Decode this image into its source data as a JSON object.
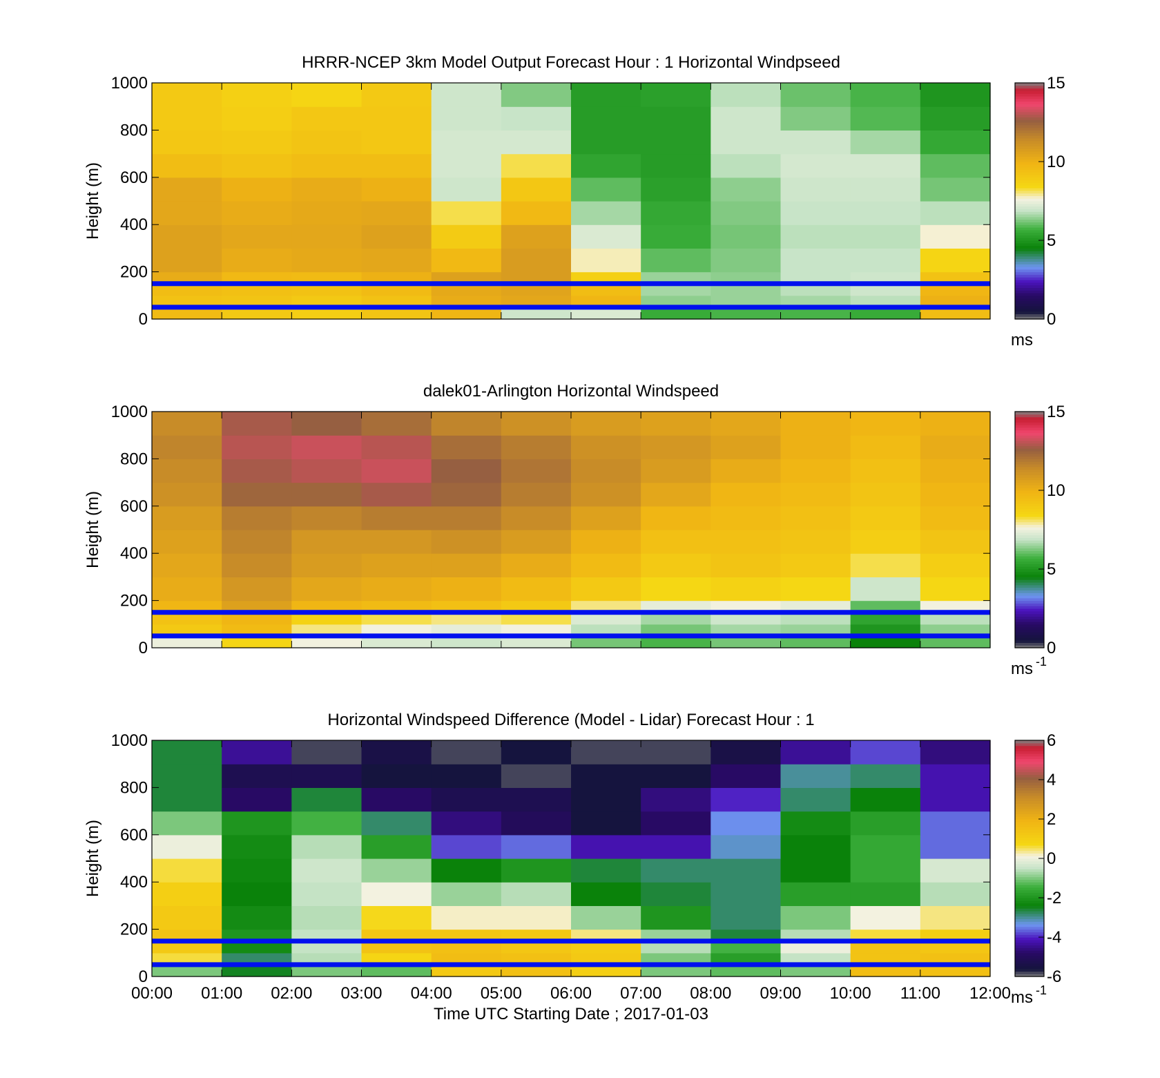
{
  "chart_data": [
    {
      "type": "heatmap",
      "title": "HRRR-NCEP 3km Model Output   Forecast Hour : 1 Horizontal Windpseed",
      "xlabel": "",
      "ylabel": "Height (m)",
      "xlim": [
        0,
        12
      ],
      "ylim": [
        0,
        1000
      ],
      "yticks": [
        "0",
        "200",
        "400",
        "600",
        "800",
        "1000"
      ],
      "colorbar": {
        "range": [
          0,
          15
        ],
        "ticks": [
          "0",
          "5",
          "10",
          "15"
        ],
        "unit": "ms",
        "unit_sup": ""
      },
      "reference_heights_m": [
        50,
        150
      ],
      "heights_m": [
        50,
        100,
        150,
        200,
        300,
        400,
        500,
        600,
        700,
        800,
        900,
        1000
      ],
      "times_h": [
        0,
        1,
        2,
        3,
        4,
        5,
        6,
        7,
        8,
        9,
        10,
        11
      ],
      "values": [
        [
          9.6,
          9.0,
          8.8,
          9.2,
          9.8,
          7.0,
          7.2,
          5.6,
          5.8,
          5.8,
          5.6,
          9.5
        ],
        [
          9.3,
          9.2,
          9.0,
          9.3,
          10.2,
          10.4,
          9.8,
          6.4,
          6.5,
          6.6,
          6.8,
          10.0
        ],
        [
          9.5,
          9.4,
          9.3,
          9.6,
          10.3,
          10.5,
          9.5,
          6.6,
          6.5,
          6.8,
          7.0,
          9.8
        ],
        [
          10.2,
          9.7,
          9.6,
          10.0,
          10.6,
          10.8,
          8.7,
          6.5,
          6.4,
          6.9,
          7.0,
          9.3
        ],
        [
          10.6,
          10.2,
          10.3,
          10.4,
          9.7,
          10.8,
          7.8,
          6.0,
          6.3,
          6.9,
          6.9,
          8.5
        ],
        [
          10.6,
          10.4,
          10.4,
          10.6,
          8.9,
          10.6,
          7.2,
          5.6,
          6.2,
          6.8,
          6.8,
          7.7
        ],
        [
          10.4,
          10.2,
          10.3,
          10.4,
          8.2,
          9.7,
          6.6,
          5.5,
          6.3,
          6.9,
          6.9,
          6.8
        ],
        [
          10.4,
          10.0,
          10.2,
          10.0,
          7.0,
          9.1,
          6.0,
          5.3,
          6.4,
          7.0,
          7.0,
          6.2
        ],
        [
          9.5,
          9.3,
          9.5,
          9.5,
          7.1,
          8.2,
          5.4,
          5.2,
          6.8,
          7.1,
          7.1,
          6.0
        ],
        [
          9.1,
          9.0,
          9.2,
          9.1,
          7.1,
          7.1,
          5.2,
          5.2,
          7.0,
          7.0,
          6.6,
          5.5
        ],
        [
          9.0,
          8.8,
          9.1,
          9.1,
          7.0,
          6.9,
          5.2,
          5.2,
          7.0,
          6.3,
          5.9,
          5.2
        ],
        [
          9.0,
          8.7,
          8.5,
          9.0,
          7.0,
          6.3,
          5.2,
          5.3,
          6.8,
          6.1,
          5.8,
          5.0
        ]
      ]
    },
    {
      "type": "heatmap",
      "title": "dalek01-Arlington  Horizontal Windspeed",
      "xlabel": "",
      "ylabel": "Height (m)",
      "xlim": [
        0,
        12
      ],
      "ylim": [
        0,
        1000
      ],
      "yticks": [
        "0",
        "200",
        "400",
        "600",
        "800",
        "1000"
      ],
      "colorbar": {
        "range": [
          0,
          15
        ],
        "ticks": [
          "0",
          "5",
          "10",
          "15"
        ],
        "unit": "ms",
        "unit_sup": "-1"
      },
      "reference_heights_m": [
        50,
        150
      ],
      "heights_m": [
        50,
        100,
        150,
        200,
        300,
        400,
        500,
        600,
        700,
        800,
        900,
        1000
      ],
      "times_h": [
        0,
        1,
        2,
        3,
        4,
        5,
        6,
        7,
        8,
        9,
        10,
        11
      ],
      "values": [
        [
          7.5,
          8.5,
          7.6,
          7.2,
          7.0,
          7.2,
          6.2,
          5.8,
          6.2,
          6.0,
          4.5,
          6.0
        ],
        [
          9.0,
          9.6,
          8.0,
          7.6,
          7.4,
          7.6,
          6.8,
          6.2,
          6.6,
          6.5,
          5.0,
          6.4
        ],
        [
          9.3,
          9.8,
          8.6,
          8.2,
          8.0,
          8.2,
          7.2,
          6.6,
          7.0,
          6.8,
          5.4,
          6.8
        ],
        [
          9.8,
          10.6,
          9.8,
          9.6,
          9.4,
          9.0,
          8.0,
          7.4,
          7.6,
          7.4,
          6.0,
          7.6
        ],
        [
          10.2,
          11.0,
          10.4,
          10.2,
          10.0,
          9.6,
          9.0,
          8.4,
          8.6,
          8.4,
          7.0,
          8.4
        ],
        [
          10.4,
          11.4,
          10.8,
          10.6,
          10.6,
          10.2,
          9.6,
          9.0,
          9.2,
          9.0,
          8.2,
          8.8
        ],
        [
          10.6,
          11.6,
          11.0,
          11.0,
          11.2,
          10.8,
          10.0,
          9.4,
          9.4,
          9.2,
          8.8,
          9.2
        ],
        [
          10.8,
          11.8,
          11.6,
          11.8,
          11.8,
          11.4,
          10.6,
          9.8,
          9.6,
          9.4,
          9.0,
          9.6
        ],
        [
          11.2,
          12.4,
          12.4,
          12.8,
          12.4,
          11.8,
          11.2,
          10.4,
          9.8,
          9.6,
          9.2,
          9.8
        ],
        [
          11.4,
          12.8,
          13.0,
          13.2,
          12.6,
          12.0,
          11.4,
          10.8,
          10.2,
          9.8,
          9.4,
          10.0
        ],
        [
          11.6,
          13.0,
          13.2,
          13.0,
          12.2,
          11.8,
          11.2,
          11.0,
          10.6,
          10.0,
          9.6,
          10.2
        ],
        [
          11.4,
          12.8,
          12.6,
          12.2,
          11.6,
          11.2,
          10.8,
          10.6,
          10.4,
          10.0,
          9.8,
          10.0
        ]
      ]
    },
    {
      "type": "heatmap",
      "title": "Horizontal Windspeed Difference (Model - Lidar) Forecast Hour : 1",
      "xlabel": "Time UTC  Starting Date ; 2017-01-03",
      "ylabel": "Height (m)",
      "xlim": [
        0,
        12
      ],
      "ylim": [
        0,
        1000
      ],
      "xticks": [
        "00:00",
        "01:00",
        "02:00",
        "03:00",
        "04:00",
        "05:00",
        "06:00",
        "07:00",
        "08:00",
        "09:00",
        "10:00",
        "11:00",
        "12:00"
      ],
      "yticks": [
        "0",
        "200",
        "400",
        "600",
        "800",
        "1000"
      ],
      "colorbar": {
        "range": [
          -6,
          6
        ],
        "ticks": [
          "-6",
          "-4",
          "-2",
          "0",
          "2",
          "4",
          "6"
        ],
        "unit": "ms",
        "unit_sup": "-1"
      },
      "reference_heights_m": [
        50,
        150
      ],
      "heights_m": [
        50,
        100,
        150,
        200,
        300,
        400,
        500,
        600,
        700,
        800,
        900,
        1000
      ],
      "times_h": [
        0,
        1,
        2,
        3,
        4,
        5,
        6,
        7,
        8,
        9,
        10,
        11
      ],
      "values": [
        [
          -1.0,
          -2.5,
          -1.0,
          -1.2,
          1.2,
          1.5,
          1.0,
          -1.0,
          -1.2,
          -1.0,
          1.6,
          1.5
        ],
        [
          0.6,
          -2.8,
          -0.6,
          0.8,
          1.6,
          1.5,
          1.2,
          -1.0,
          -1.8,
          -0.5,
          1.4,
          1.5
        ],
        [
          1.2,
          -2.2,
          -0.5,
          1.4,
          1.5,
          1.3,
          1.1,
          -0.6,
          -1.4,
          0.0,
          1.4,
          1.3
        ],
        [
          1.4,
          -2.0,
          -0.5,
          1.3,
          1.3,
          1.2,
          0.4,
          -0.8,
          -2.6,
          -0.6,
          0.6,
          1.0
        ],
        [
          1.2,
          -2.2,
          -0.6,
          0.7,
          0.2,
          0.2,
          -0.8,
          -2.0,
          -2.8,
          -1.0,
          0.1,
          0.4
        ],
        [
          1.0,
          -2.4,
          -0.5,
          0.1,
          -0.8,
          -0.6,
          -2.4,
          -2.6,
          -2.8,
          -1.8,
          -1.8,
          -0.6
        ],
        [
          0.6,
          -2.3,
          -0.4,
          -0.8,
          -2.4,
          -2.0,
          -2.6,
          -2.8,
          -2.8,
          -2.4,
          -1.6,
          -0.3
        ],
        [
          0.0,
          -2.2,
          -0.6,
          -1.8,
          -3.8,
          -3.6,
          -4.2,
          -4.2,
          -3.2,
          -2.4,
          -1.6,
          -3.6
        ],
        [
          -1.0,
          -2.0,
          -1.4,
          -2.8,
          -4.6,
          -5.0,
          -5.6,
          -4.8,
          -3.4,
          -2.2,
          -1.8,
          -3.6
        ],
        [
          -2.6,
          -4.8,
          -2.6,
          -4.8,
          -5.2,
          -5.2,
          -5.6,
          -4.6,
          -4.0,
          -2.8,
          -2.4,
          -4.2
        ],
        [
          -2.6,
          -5.2,
          -5.2,
          -5.6,
          -5.6,
          -5.8,
          -5.6,
          -5.6,
          -4.8,
          -3.0,
          -2.8,
          -4.2
        ],
        [
          -2.6,
          -4.4,
          -5.8,
          -5.4,
          -5.8,
          -5.6,
          -5.8,
          -5.8,
          -5.4,
          -4.4,
          -3.8,
          -4.6
        ]
      ]
    }
  ]
}
